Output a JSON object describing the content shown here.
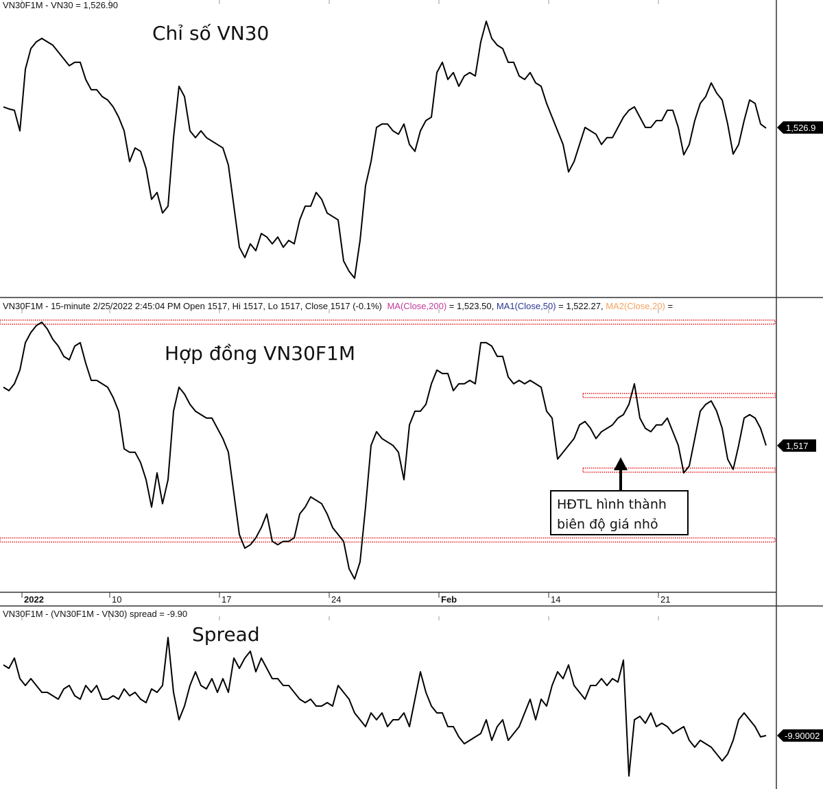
{
  "colors": {
    "line": "#000000",
    "resistance": "#e8262a",
    "ma": "#c0399b",
    "ma1": "#2a3590",
    "ma2": "#f4a261",
    "tag_bg": "#000000"
  },
  "chart_data": [
    {
      "type": "line",
      "header": "VN30F1M - VN30 = 1,526.90",
      "title": "Chỉ số VN30",
      "last_value_label": "1,526.9",
      "ylim": [
        1453,
        1583
      ],
      "grid": false,
      "series": [
        {
          "values": [
            [
              1536.2,
              1535.3,
              1534.7,
              1525.7
            ],
            [
              1552.7,
              1561.7,
              1564.7,
              1566.2
            ],
            [
              1564.7,
              1563.2,
              1560.2,
              1557.2
            ],
            [
              1554.2,
              1555.7,
              1555.7,
              1548.2
            ],
            [
              1543.7,
              1543.7,
              1540.7,
              1539.2
            ],
            [
              1536.2,
              1531.7,
              1525.7,
              1512.2
            ],
            [
              1518.2,
              1516.7,
              1509.2,
              1495.7
            ],
            [
              1498.7,
              1489.7,
              1492.7,
              1522.7
            ],
            [
              1545.2,
              1540.7,
              1525.7,
              1522.7
            ],
            [
              1525.7,
              1522.7,
              1521.2,
              1519.7
            ],
            [
              1518.2,
              1510.7,
              1492.7,
              1474.7
            ],
            [
              1470.2,
              1476.2,
              1473.2,
              1480.7
            ],
            [
              1479.2,
              1476.2,
              1479.2,
              1474.7
            ],
            [
              1477.7,
              1476.2,
              1486.7,
              1492.7
            ],
            [
              1492.7,
              1498.7,
              1495.7,
              1489.7
            ],
            [
              1488.2,
              1486.7,
              1468.7,
              1464.2
            ],
            [
              1461.2,
              1477.7,
              1501.7,
              1512.2
            ],
            [
              1527.2,
              1528.7,
              1528.7,
              1525.7
            ],
            [
              1524.2,
              1528.7,
              1519.7,
              1516.7
            ],
            [
              1525.7,
              1530.2,
              1531.7,
              1551.2
            ],
            [
              1555.7,
              1548.2,
              1551.2,
              1545.2
            ],
            [
              1549.7,
              1551.2,
              1549.7,
              1564.7
            ],
            [
              1573.7,
              1566.2,
              1563.2,
              1561.7
            ],
            [
              1555.7,
              1555.7,
              1549.7,
              1548.2
            ],
            [
              1551.2,
              1546.7,
              1545.2,
              1537.7
            ],
            [
              1531.7,
              1525.7,
              1519.7,
              1507.7
            ],
            [
              1512.2,
              1519.7,
              1527.2,
              1525.7
            ],
            [
              1524.2,
              1519.7,
              1522.7,
              1522.7
            ],
            [
              1527.2,
              1531.7,
              1534.7,
              1536.2
            ],
            [
              1531.7,
              1527.2,
              1527.2,
              1530.2
            ],
            [
              1530.2,
              1534.7,
              1534.7,
              1527.2
            ],
            [
              1515.2,
              1519.7,
              1530.2,
              1537.7
            ],
            [
              1540.7,
              1546.7,
              1542.2,
              1539.2
            ],
            [
              1528.7,
              1515.5,
              1519.7,
              1530.2
            ],
            [
              1539.2,
              1537.7,
              1528.7,
              1526.9
            ]
          ]
        }
      ]
    },
    {
      "type": "line",
      "header": {
        "main": "VN30F1M - 15-minute 2/25/2022 2:45:04 PM Open 1517, Hi 1517, Lo 1517, Close 1517 (-0.1%)",
        "ma": "MA(Close,200)",
        "ma_value": " = 1,523.50, ",
        "ma1": "MA1(Close,50)",
        "ma1_value": " = 1,522.27, ",
        "ma2": "MA2(Close,20)",
        "ma2_value": " ="
      },
      "title": "Hợp đồng VN30F1M",
      "last_value_label": "1,517",
      "ylim": [
        1453,
        1581.5
      ],
      "grid": false,
      "levels": [
        {
          "value": 1571,
          "from": "2021-12-31"
        },
        {
          "value": 1475.6,
          "from": "2021-12-31"
        },
        {
          "value": 1538.9,
          "from": "2022-02-15"
        },
        {
          "value": 1506.2,
          "from": "2022-02-15"
        }
      ],
      "annotation": {
        "lines": [
          "HĐTL hình thành",
          "biên độ giá nhỏ"
        ]
      },
      "series": [
        {
          "values": [
            [
              1542.5,
              1541,
              1544,
              1550
            ],
            [
              1562,
              1566.5,
              1569.5,
              1571
            ],
            [
              1568,
              1563.5,
              1560.5,
              1556
            ],
            [
              1554.5,
              1560.5,
              1562,
              1553
            ],
            [
              1545.5,
              1545.5,
              1544,
              1542.5
            ],
            [
              1538,
              1532,
              1515.5,
              1514
            ],
            [
              1514,
              1509.5,
              1502,
              1490
            ],
            [
              1505,
              1491.5,
              1502,
              1532
            ],
            [
              1542.5,
              1539.5,
              1535,
              1532
            ],
            [
              1530.5,
              1529,
              1529,
              1524.5
            ],
            [
              1520,
              1514,
              1496,
              1478
            ],
            [
              1472,
              1473.5,
              1476.5,
              1481
            ],
            [
              1487,
              1475,
              1473.5,
              1475
            ],
            [
              1475,
              1476.5,
              1487,
              1490
            ],
            [
              1494.5,
              1493,
              1491.5,
              1487
            ],
            [
              1481,
              1478,
              1475,
              1463
            ],
            [
              1458.5,
              1466,
              1490,
              1517
            ],
            [
              1523,
              1520,
              1518.5,
              1517
            ],
            [
              1514,
              1502,
              1526,
              1532
            ],
            [
              1532,
              1535,
              1544,
              1550
            ],
            [
              1548.5,
              1548.5,
              1541,
              1544
            ],
            [
              1544,
              1545.5,
              1544,
              1562
            ],
            [
              1562,
              1560.5,
              1556,
              1556
            ],
            [
              1547,
              1544,
              1545.5,
              1544
            ],
            [
              1545.5,
              1544,
              1542.5,
              1532
            ],
            [
              1529,
              1511,
              1514,
              1517
            ],
            [
              1520,
              1526,
              1527.5,
              1524.5
            ],
            [
              1520,
              1523,
              1524.5,
              1526
            ],
            [
              1529,
              1530.5,
              1535,
              1544
            ],
            [
              1529,
              1524.5,
              1523,
              1526
            ],
            [
              1526,
              1529,
              1523,
              1517
            ],
            [
              1505,
              1508,
              1520,
              1532
            ],
            [
              1535,
              1536.5,
              1532,
              1524.5
            ],
            [
              1511,
              1506.5,
              1517,
              1529
            ],
            [
              1530.5,
              1529,
              1524.5,
              1517
            ]
          ]
        }
      ]
    },
    {
      "type": "line",
      "header": "VN30F1M - (VN30F1M - VN30) spread = -9.90",
      "title": "Spread",
      "last_value_label": "-9.90002",
      "ylim": [
        -17.7,
        9.1
      ],
      "grid": false,
      "series": [
        {
          "values": [
            [
              0.4,
              -0.1,
              1.4,
              -1.6
            ],
            [
              -2.6,
              -1.6,
              -2.6,
              -3.6
            ],
            [
              -3.6,
              -4.1,
              -4.6,
              -3.1
            ],
            [
              -2.6,
              -4.1,
              -4.6,
              -2.6
            ],
            [
              -3.6,
              -2.6,
              -4.6,
              -4.6
            ],
            [
              -4.1,
              -4.6,
              -3.1,
              -4.1
            ],
            [
              -3.6,
              -4.6,
              -5.1,
              -3.1
            ],
            [
              -3.6,
              -2.6,
              4.4,
              -3.6
            ],
            [
              -7.6,
              -5.6,
              -2.6,
              -0.6
            ],
            [
              -2.6,
              -3.1,
              -1.6,
              -3.6
            ],
            [
              -1.6,
              -3.6,
              1.4,
              -0.1
            ],
            [
              1.4,
              2.4,
              -0.6,
              1.4
            ],
            [
              -0.1,
              -1.6,
              -1.6,
              -2.6
            ],
            [
              -2.6,
              -3.6,
              -4.6,
              -5.1
            ],
            [
              -4.6,
              -5.6,
              -5.6,
              -5.1
            ],
            [
              -5.6,
              -2.6,
              -3.6,
              -4.6
            ],
            [
              -6.6,
              -7.6,
              -8.6,
              -6.6
            ],
            [
              -7.6,
              -6.6,
              -8.6,
              -7.6
            ],
            [
              -7.6,
              -6.6,
              -8.6,
              -4.6
            ],
            [
              -0.6,
              -3.6,
              -5.6,
              -6.6
            ],
            [
              -6.6,
              -8.6,
              -8.6,
              -10.1
            ],
            [
              -11.1,
              -10.6,
              -10.1,
              -9.6
            ],
            [
              -7.6,
              -10.6,
              -8.6,
              -7.6
            ],
            [
              -10.6,
              -9.6,
              -8.6,
              -6.6
            ],
            [
              -4.6,
              -7.6,
              -4.6,
              -5.6
            ],
            [
              -2.6,
              -0.6,
              -1.6,
              0.4
            ],
            [
              -2.6,
              -3.6,
              -4.6,
              -2.6
            ],
            [
              -2.6,
              -1.6,
              -2.6,
              -1.6
            ],
            [
              -2.1,
              1.1,
              -15.8,
              -7.6
            ],
            [
              -7.1,
              -8.1,
              -6.6,
              -8.6
            ],
            [
              -8.1,
              -8.6,
              -9.6,
              -9.1
            ],
            [
              -8.6,
              -10.6,
              -11.6,
              -10.6
            ],
            [
              -11.1,
              -11.6,
              -12.6,
              -13.6
            ],
            [
              -12.6,
              -10.6,
              -7.6,
              -6.6
            ],
            [
              -7.6,
              -8.6,
              -10.1,
              -9.9
            ]
          ]
        }
      ]
    }
  ],
  "dates": [
    "2021-12-31",
    "2022-01-04",
    "2022-01-05",
    "2022-01-06",
    "2022-01-07",
    "2022-01-10",
    "2022-01-11",
    "2022-01-12",
    "2022-01-13",
    "2022-01-14",
    "2022-01-17",
    "2022-01-18",
    "2022-01-19",
    "2022-01-20",
    "2022-01-21",
    "2022-01-24",
    "2022-01-25",
    "2022-01-26",
    "2022-01-27",
    "2022-01-28",
    "2022-02-07",
    "2022-02-08",
    "2022-02-09",
    "2022-02-10",
    "2022-02-11",
    "2022-02-14",
    "2022-02-15",
    "2022-02-16",
    "2022-02-17",
    "2022-02-18",
    "2022-02-21",
    "2022-02-22",
    "2022-02-23",
    "2022-02-24",
    "2022-02-25"
  ],
  "x_ticks": [
    {
      "label": "2022",
      "date": "2022-01-04",
      "bold": true
    },
    {
      "label": "10",
      "date": "2022-01-10",
      "bold": false
    },
    {
      "label": "17",
      "date": "2022-01-17",
      "bold": false
    },
    {
      "label": "24",
      "date": "2022-01-24",
      "bold": false
    },
    {
      "label": "Feb",
      "date": "2022-02-07",
      "bold": true
    },
    {
      "label": "14",
      "date": "2022-02-14",
      "bold": false
    },
    {
      "label": "21",
      "date": "2022-02-21",
      "bold": false
    }
  ]
}
